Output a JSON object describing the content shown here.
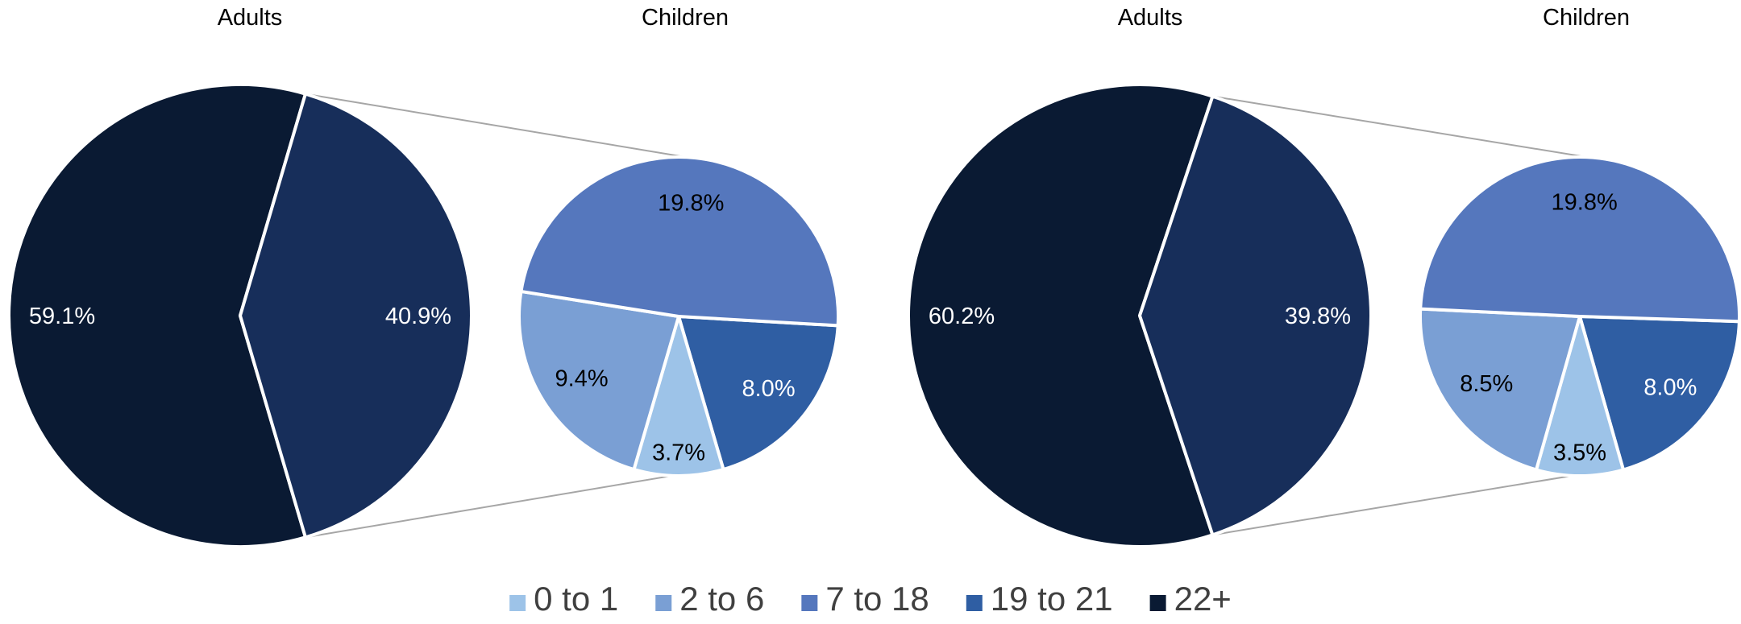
{
  "chart_data": [
    {
      "type": "pie",
      "subtype": "pie-of-pie",
      "left_title": "Adults",
      "right_title": "Children",
      "adults": [
        {
          "category": "22+",
          "value": 59.1,
          "label": "59.1%",
          "color": "#0a1a33"
        },
        {
          "category": "19 to 21 (children, expanded)",
          "value": 40.9,
          "label": "40.9%",
          "color": "#172e5a"
        }
      ],
      "children": [
        {
          "category": "19 to 21",
          "value": 8.0,
          "label": "8.0%",
          "color": "#2f5ea3"
        },
        {
          "category": "0 to 1",
          "value": 3.7,
          "label": "3.7%",
          "color": "#9dc3e8"
        },
        {
          "category": "2 to 6",
          "value": 9.4,
          "label": "9.4%",
          "color": "#7a9fd4"
        },
        {
          "category": "7 to 18",
          "value": 19.8,
          "label": "19.8%",
          "color": "#5577bd"
        }
      ]
    },
    {
      "type": "pie",
      "subtype": "pie-of-pie",
      "left_title": "Adults",
      "right_title": "Children",
      "adults": [
        {
          "category": "22+",
          "value": 60.2,
          "label": "60.2%",
          "color": "#0a1a33"
        },
        {
          "category": "19 to 21 (children, expanded)",
          "value": 39.8,
          "label": "39.8%",
          "color": "#172e5a"
        }
      ],
      "children": [
        {
          "category": "19 to 21",
          "value": 8.0,
          "label": "8.0%",
          "color": "#2f5ea3"
        },
        {
          "category": "0 to 1",
          "value": 3.5,
          "label": "3.5%",
          "color": "#9dc3e8"
        },
        {
          "category": "2 to 6",
          "value": 8.5,
          "label": "8.5%",
          "color": "#7a9fd4"
        },
        {
          "category": "7 to 18",
          "value": 19.8,
          "label": "19.8%",
          "color": "#5577bd"
        }
      ]
    }
  ],
  "legend": {
    "placement": "bottom",
    "items": [
      {
        "label": "0 to 1",
        "color": "#9dc3e8"
      },
      {
        "label": "2 to 6",
        "color": "#7a9fd4"
      },
      {
        "label": "7 to 18",
        "color": "#5577bd"
      },
      {
        "label": "19 to 21",
        "color": "#2f5ea3"
      },
      {
        "label": "22+",
        "color": "#0a1a33"
      }
    ]
  }
}
